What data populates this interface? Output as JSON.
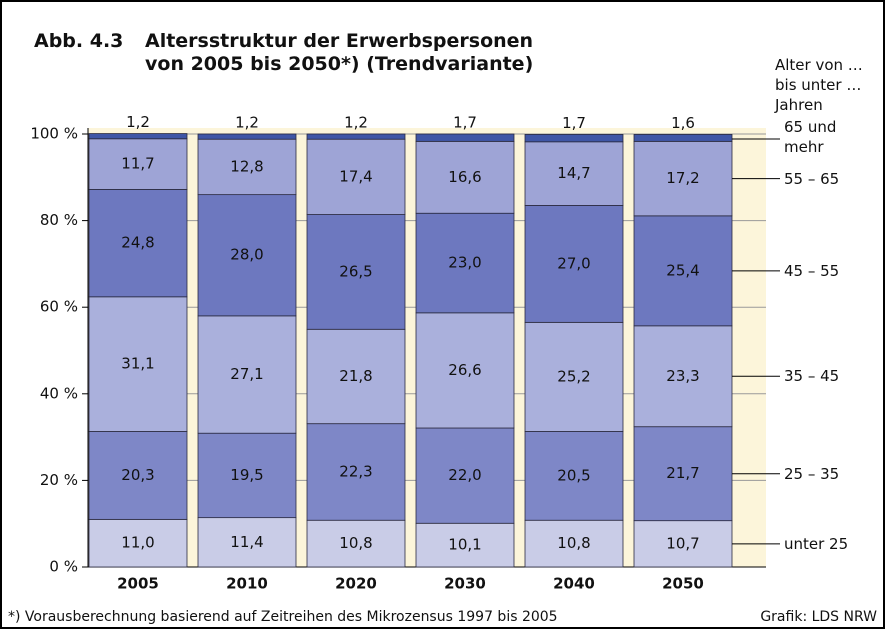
{
  "chart_data": {
    "type": "stacked_bar",
    "label": "Abb. 4.3",
    "title": "Altersstruktur der Erwerbspersonen von 2005 bis 2050*) (Trendvariante)",
    "legend_title": "Alter von … bis unter … Jahren",
    "footnote": "*) Vorausberechnung basierend auf Zeitreihen des Mikrozensus 1997 bis 2005",
    "source": "Grafik: LDS NRW",
    "categories": [
      "2005",
      "2010",
      "2020",
      "2030",
      "2040",
      "2050"
    ],
    "series": [
      {
        "name": "unter 25",
        "color": "#c9cce7",
        "values": [
          11.0,
          11.4,
          10.8,
          10.1,
          10.8,
          10.7
        ],
        "value_labels": [
          "11,0",
          "11,4",
          "10,8",
          "10,1",
          "10,8",
          "10,7"
        ]
      },
      {
        "name": "25 – 35",
        "color": "#7e87c7",
        "values": [
          20.3,
          19.5,
          22.3,
          22.0,
          20.5,
          21.7
        ],
        "value_labels": [
          "20,3",
          "19,5",
          "22,3",
          "22,0",
          "20,5",
          "21,7"
        ]
      },
      {
        "name": "35 – 45",
        "color": "#aab0dc",
        "values": [
          31.1,
          27.1,
          21.8,
          26.6,
          25.2,
          23.3
        ],
        "value_labels": [
          "31,1",
          "27,1",
          "21,8",
          "26,6",
          "25,2",
          "23,3"
        ]
      },
      {
        "name": "45 – 55",
        "color": "#6d78bf",
        "values": [
          24.8,
          28.0,
          26.5,
          23.0,
          27.0,
          25.4
        ],
        "value_labels": [
          "24,8",
          "28,0",
          "26,5",
          "23,0",
          "27,0",
          "25,4"
        ]
      },
      {
        "name": "55 – 65",
        "color": "#9ea4d6",
        "values": [
          11.7,
          12.8,
          17.4,
          16.6,
          14.7,
          17.2
        ],
        "value_labels": [
          "11,7",
          "12,8",
          "17,4",
          "16,6",
          "14,7",
          "17,2"
        ]
      },
      {
        "name": "65 und mehr",
        "color": "#3f56a6",
        "values": [
          1.2,
          1.2,
          1.2,
          1.7,
          1.7,
          1.6
        ],
        "value_labels": [
          "1,2",
          "1,2",
          "1,2",
          "1,7",
          "1,7",
          "1,6"
        ]
      }
    ],
    "ylim": [
      0,
      100
    ],
    "yticks": [
      {
        "value": 0,
        "label": "0 %"
      },
      {
        "value": 20,
        "label": "20 %"
      },
      {
        "value": 40,
        "label": "40 %"
      },
      {
        "value": 60,
        "label": "60 %"
      },
      {
        "value": 80,
        "label": "80 %"
      },
      {
        "value": 100,
        "label": "100 %"
      }
    ],
    "grid": true
  }
}
